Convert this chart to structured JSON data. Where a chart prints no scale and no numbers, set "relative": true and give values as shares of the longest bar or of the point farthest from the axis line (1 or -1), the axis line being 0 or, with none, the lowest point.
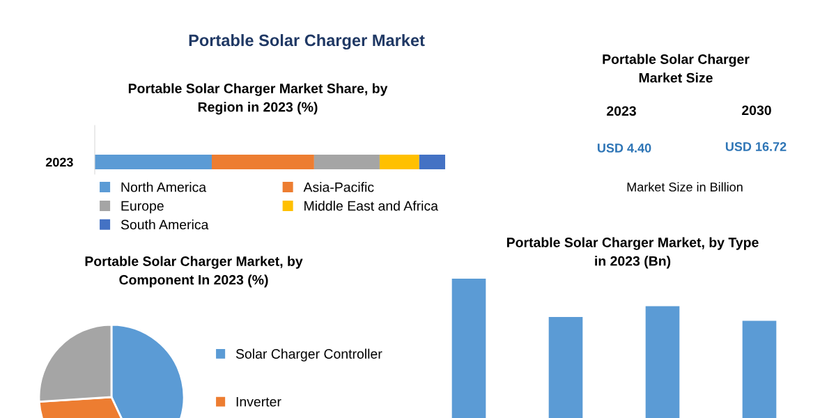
{
  "chart_data": [
    {
      "type": "other",
      "title": "Portable Solar Charger Market"
    },
    {
      "type": "bar",
      "title": "Portable Solar Charger Market Share, by\nRegion in 2023 (%)",
      "categories": [
        "2023"
      ],
      "orientation": "horizontal",
      "stacked": true,
      "relative": true,
      "legend": "bottom",
      "series": [
        {
          "name": "North America",
          "color": "#5b9bd5",
          "values": [
            0.334
          ]
        },
        {
          "name": "Asia-Pacific",
          "color": "#ed7d31",
          "values": [
            0.292
          ]
        },
        {
          "name": "Europe",
          "color": "#a5a5a5",
          "values": [
            0.187
          ]
        },
        {
          "name": "Middle East and Africa",
          "color": "#ffc000",
          "values": [
            0.113
          ]
        },
        {
          "name": "South America",
          "color": "#4472c4",
          "values": [
            0.074
          ]
        }
      ]
    },
    {
      "type": "other",
      "title": "Portable Solar Charger\nMarket Size",
      "annotations": [
        "2023",
        "2030",
        "USD 4.40",
        "USD 16.72",
        "Market Size in Billion"
      ]
    },
    {
      "type": "pie",
      "title": "Portable Solar Charger Market, by\nComponent In 2023 (%)",
      "categories": [
        "Solar Charger Controller",
        "Inverter",
        null
      ],
      "values": [
        43,
        31,
        26
      ],
      "colors": [
        "#5b9bd5",
        "#ed7d31",
        "#a5a5a5"
      ],
      "legend": "right"
    },
    {
      "type": "bar",
      "title": "Portable Solar Charger Market, by Type\nin 2023 (Bn)",
      "categories": [
        null,
        null,
        null,
        null
      ],
      "relative": true,
      "values": [
        1,
        0.725,
        0.802,
        0.698
      ],
      "color": "#5b9bd5"
    }
  ]
}
